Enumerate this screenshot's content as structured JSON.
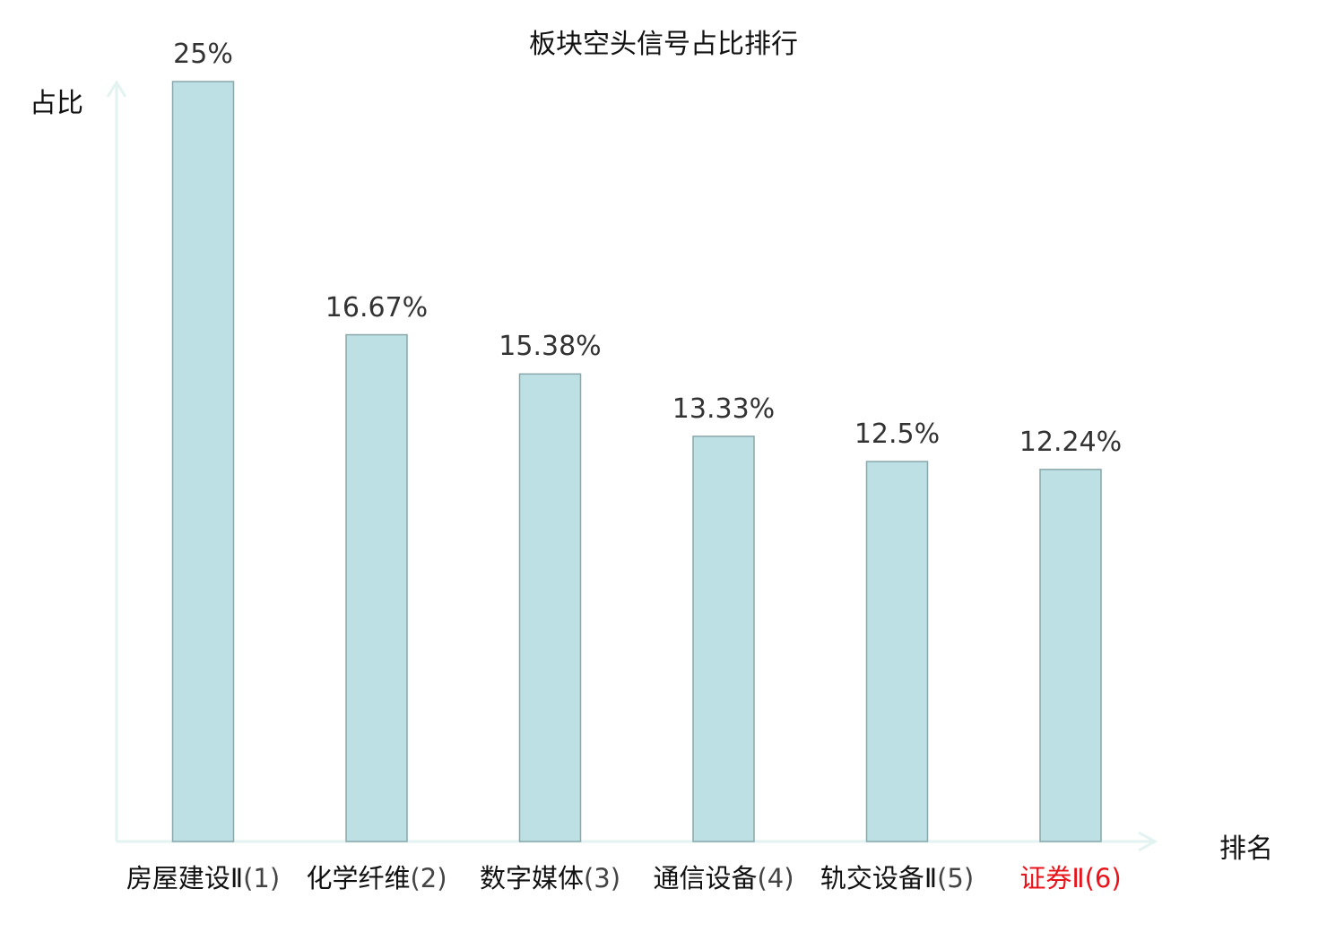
{
  "chart_data": {
    "type": "bar",
    "title": "板块空头信号占比排行",
    "ylabel": "占比",
    "xlabel": "排名",
    "categories": [
      {
        "name": "房屋建设Ⅱ",
        "rank": "(1)",
        "highlight": false
      },
      {
        "name": "化学纤维",
        "rank": "(2)",
        "highlight": false
      },
      {
        "name": "数字媒体",
        "rank": "(3)",
        "highlight": false
      },
      {
        "name": "通信设备",
        "rank": "(4)",
        "highlight": false
      },
      {
        "name": "轨交设备Ⅱ",
        "rank": "(5)",
        "highlight": false
      },
      {
        "name": "证券Ⅱ",
        "rank": "(6)",
        "highlight": true
      }
    ],
    "values": [
      25,
      16.67,
      15.38,
      13.33,
      12.5,
      12.24
    ],
    "value_labels": [
      "25%",
      "16.67%",
      "15.38%",
      "13.33%",
      "12.5%",
      "12.24%"
    ],
    "ylim": [
      0,
      25
    ],
    "grid": false,
    "bar_color": "#bce0e3",
    "bar_stroke": "#8aa7ab",
    "axis_color": "#e2f3f1",
    "highlight_color": "#e8141b"
  }
}
